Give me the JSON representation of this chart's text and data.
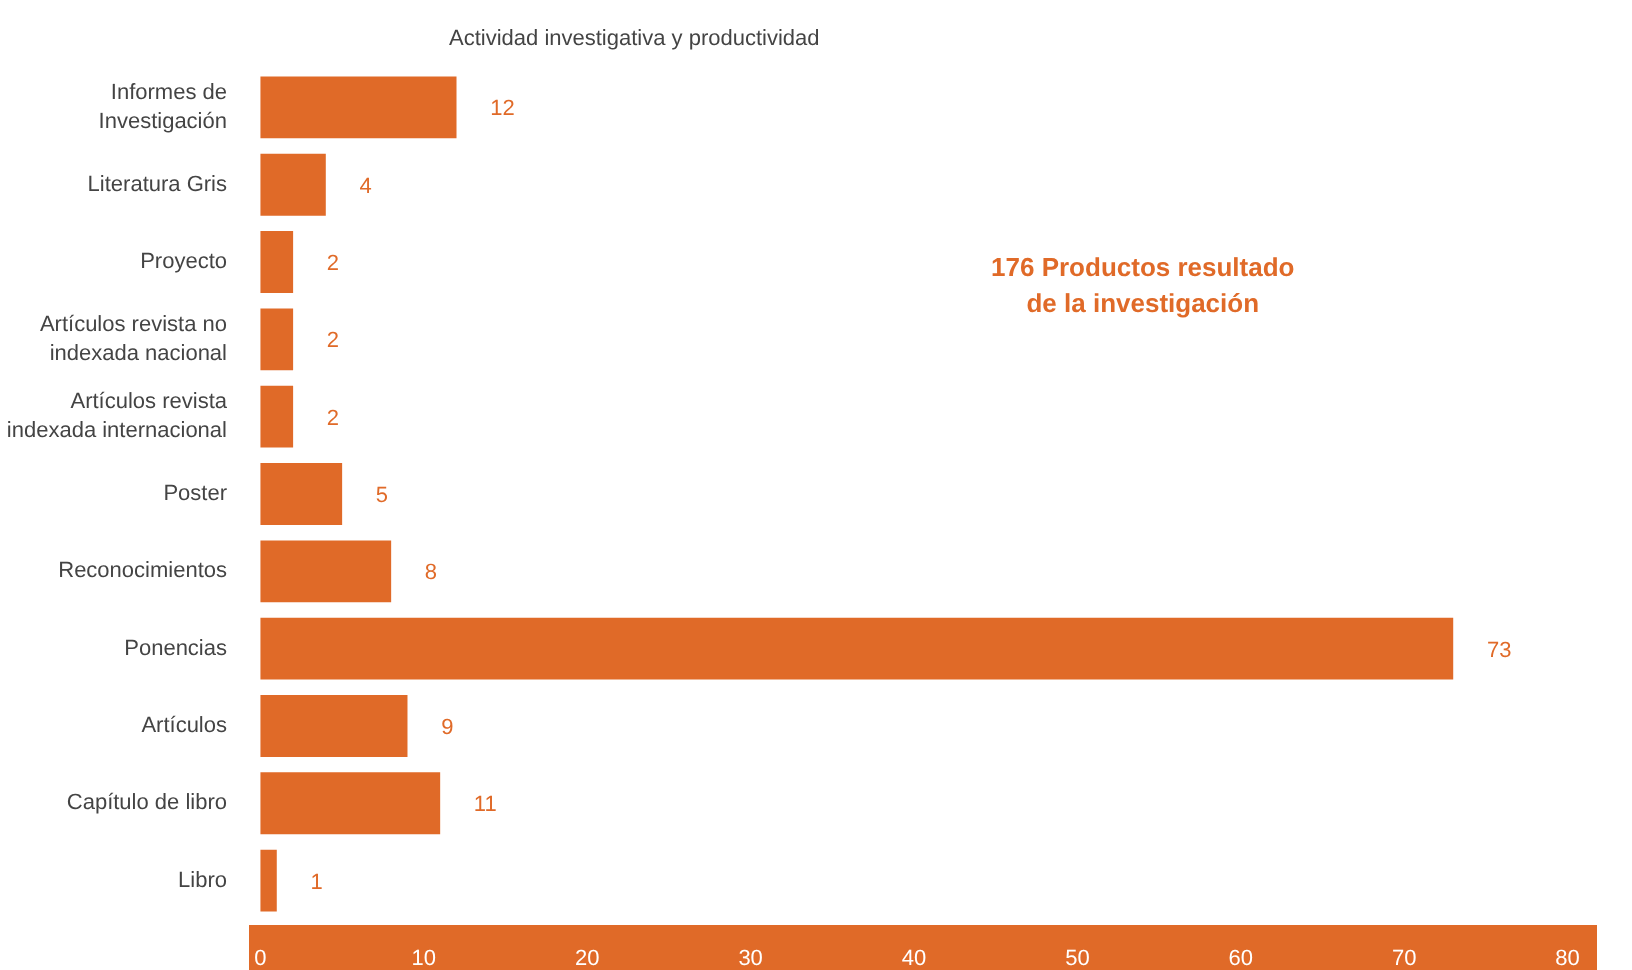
{
  "chart_data": {
    "type": "bar",
    "orientation": "horizontal",
    "title": "Actividad investigativa y productividad",
    "categories": [
      "Informes de Investigación",
      "Literatura Gris",
      "Proyecto",
      "Artículos revista no indexada nacional",
      "Artículos revista indexada internacional",
      "Poster",
      "Reconocimientos",
      "Ponencias",
      "Artículos",
      "Capítulo de libro",
      "Libro"
    ],
    "values": [
      12,
      4,
      2,
      2,
      2,
      5,
      8,
      73,
      9,
      11,
      1
    ],
    "color": "#e06a28",
    "xlim": [
      -0.7,
      81.8
    ],
    "xticks": [
      0,
      10,
      20,
      30,
      40,
      50,
      60,
      70,
      80
    ],
    "grid": false,
    "data_labels": true,
    "annotations": [
      "176 Productos resultado de la investigación"
    ]
  }
}
